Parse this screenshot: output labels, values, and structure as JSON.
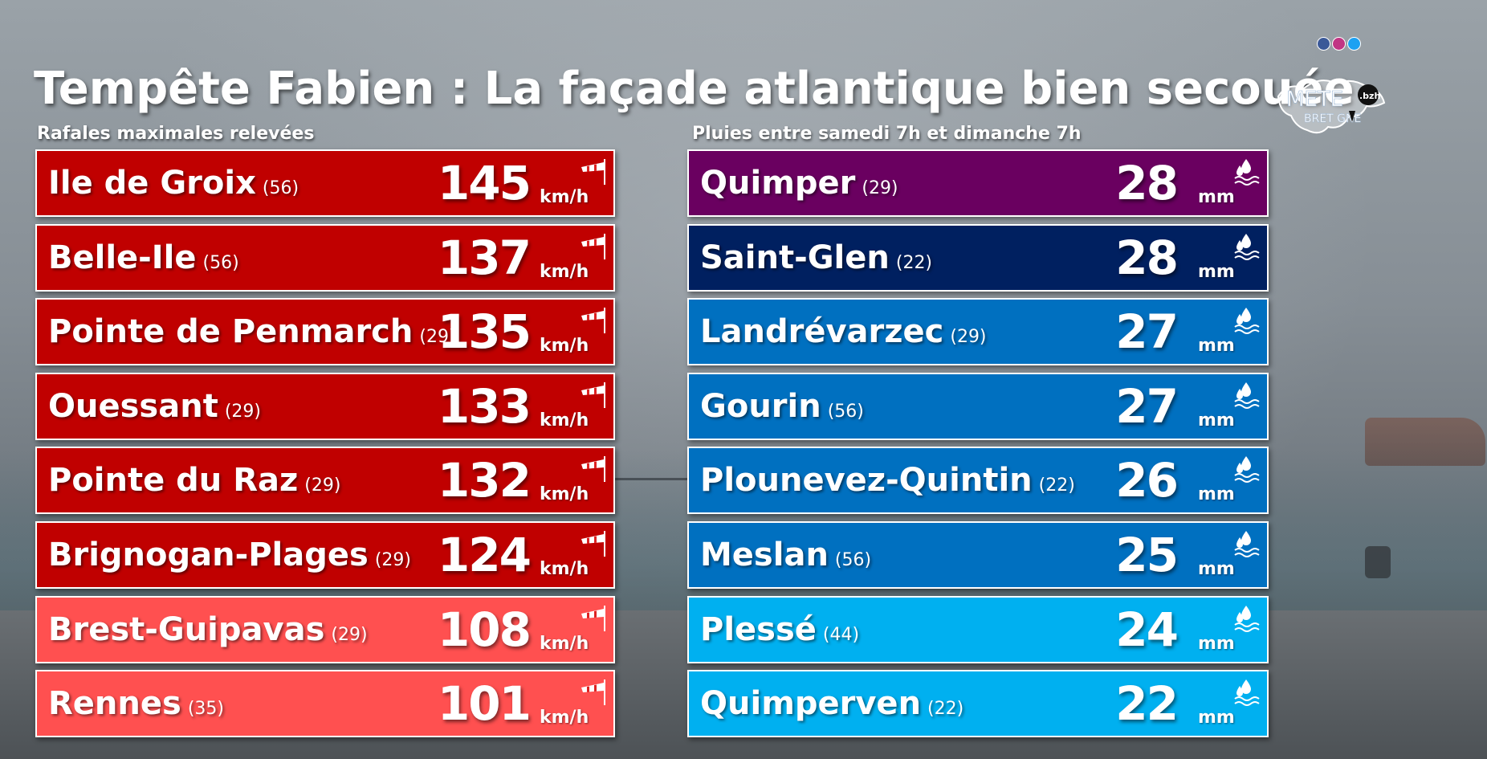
{
  "title": "Tempête Fabien : La façade atlantique bien secouée",
  "left_panel": {
    "subtitle": "Rafales maximales relevées",
    "unit": "km/h",
    "icon": "windsock-icon",
    "rows": [
      {
        "name": "Ile de Groix",
        "dept": "(56)",
        "value": "145",
        "color": "#c00000"
      },
      {
        "name": "Belle-Ile",
        "dept": "(56)",
        "value": "137",
        "color": "#c00000"
      },
      {
        "name": "Pointe de Penmarch",
        "dept": "(29)",
        "value": "135",
        "color": "#c00000"
      },
      {
        "name": "Ouessant",
        "dept": "(29)",
        "value": "133",
        "color": "#c00000"
      },
      {
        "name": "Pointe du Raz",
        "dept": "(29)",
        "value": "132",
        "color": "#c00000"
      },
      {
        "name": "Brignogan-Plages",
        "dept": "(29)",
        "value": "124",
        "color": "#c00000"
      },
      {
        "name": "Brest-Guipavas",
        "dept": "(29)",
        "value": "108",
        "color": "#ff5050"
      },
      {
        "name": "Rennes",
        "dept": "(35)",
        "value": "101",
        "color": "#ff5050"
      }
    ]
  },
  "right_panel": {
    "subtitle": "Pluies entre samedi 7h et dimanche 7h",
    "unit": "mm",
    "icon": "rain-drops-icon",
    "rows": [
      {
        "name": "Quimper",
        "dept": "(29)",
        "value": "28",
        "color": "#6a0060"
      },
      {
        "name": "Saint-Glen",
        "dept": "(22)",
        "value": "28",
        "color": "#002060"
      },
      {
        "name": "Landrévarzec",
        "dept": "(29)",
        "value": "27",
        "color": "#0070c0"
      },
      {
        "name": "Gourin",
        "dept": "(56)",
        "value": "27",
        "color": "#0070c0"
      },
      {
        "name": "Plounevez-Quintin",
        "dept": "(22)",
        "value": "26",
        "color": "#0070c0"
      },
      {
        "name": "Meslan",
        "dept": "(56)",
        "value": "25",
        "color": "#0070c0"
      },
      {
        "name": "Plessé",
        "dept": "(44)",
        "value": "24",
        "color": "#00b0f0"
      },
      {
        "name": "Quimperven",
        "dept": "(22)",
        "value": "22",
        "color": "#00b0f0"
      }
    ]
  },
  "social_icons": [
    {
      "name": "facebook-icon",
      "color": "#3b5998"
    },
    {
      "name": "instagram-icon",
      "color": "#c13584"
    },
    {
      "name": "twitter-icon",
      "color": "#1da1f2"
    }
  ],
  "logo": {
    "text_top": "METEO",
    "text_bottom": "BRETAGNE",
    "badge": ".bzh"
  }
}
